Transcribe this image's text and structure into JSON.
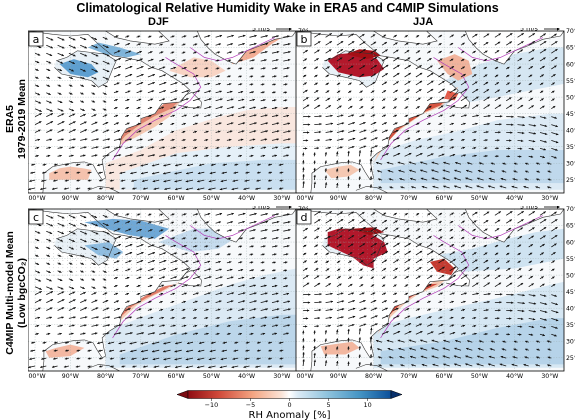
{
  "figure": {
    "title": "Climatological Relative Humidity Wake in ERA5 and C4MIP Simulations",
    "columns": [
      "DJF",
      "JJA"
    ],
    "rows": [
      {
        "line1": "ERA5",
        "line2": "1979-2019 Mean"
      },
      {
        "line1": "C4MIP Multi-model Mean",
        "line2": "(Low bgcCO₂)"
      }
    ],
    "panels": [
      {
        "letter": "a",
        "scale": "5 m/s"
      },
      {
        "letter": "b",
        "scale": "5 m/s"
      },
      {
        "letter": "c",
        "scale": "5 m/s"
      },
      {
        "letter": "d",
        "scale": "5 m/s"
      }
    ],
    "lon_ticks": [
      "100°W",
      "90°W",
      "80°W",
      "70°W",
      "60°W",
      "50°W",
      "40°W",
      "30°W"
    ],
    "lat_ticks": [
      "70°N",
      "65°N",
      "60°N",
      "55°N",
      "50°N",
      "45°N",
      "40°N",
      "35°N",
      "30°N",
      "25°N"
    ]
  },
  "colorbar": {
    "label": "RH Anomaly [%]",
    "ticks": [
      "−10",
      "−5",
      "0",
      "5",
      "10"
    ],
    "tick_values": [
      -10,
      -5,
      0,
      5,
      10
    ],
    "range": [
      -13,
      13
    ],
    "negative_color": "#a50f15",
    "neutral_color": "#ffffff",
    "positive_color": "#08519c",
    "extend": "both"
  }
}
